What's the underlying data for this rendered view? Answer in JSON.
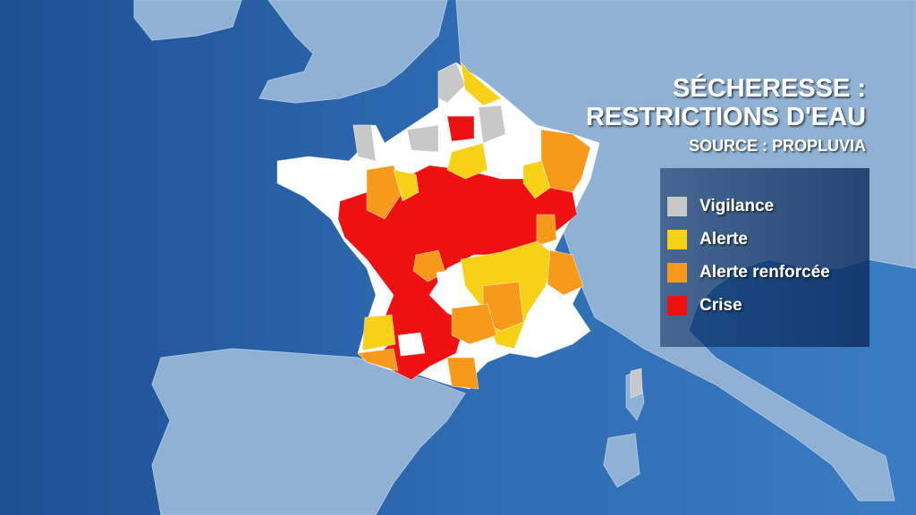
{
  "title": [
    "SÉCHERESSE :",
    "RESTRICTIONS D'EAU"
  ],
  "source": "SOURCE : PROPLUVIA",
  "legend": [
    {
      "label": "Vigilance",
      "color": "#c8c8c8"
    },
    {
      "label": "Alerte",
      "color": "#f7d117"
    },
    {
      "label": "Alerte renforcée",
      "color": "#f79a1c"
    },
    {
      "label": "Crise",
      "color": "#ee1111"
    }
  ]
}
